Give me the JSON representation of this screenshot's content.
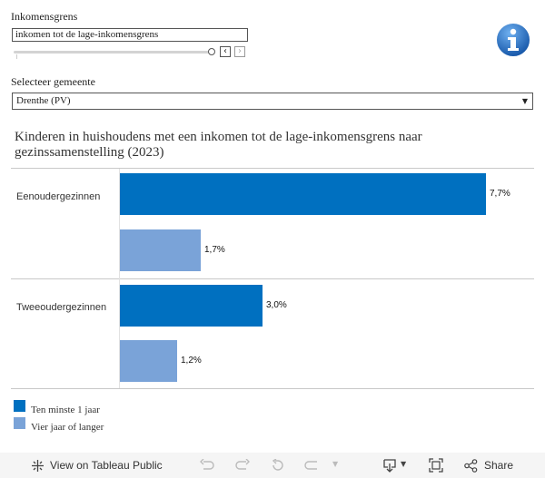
{
  "filters": {
    "income_label": "Inkomensgrens",
    "income_value": "inkomen tot de lage-inkomensgrens",
    "municipality_label": "Selecteer gemeente",
    "municipality_value": "Drenthe (PV)"
  },
  "chart_data": {
    "type": "bar",
    "orientation": "horizontal",
    "title": "Kinderen in huishoudens met een inkomen tot de lage-inkomensgrens naar gezinssamenstelling (2023)",
    "categories": [
      "Eenoudergezinnen",
      "Tweeoudergezinnen"
    ],
    "series": [
      {
        "name": "Ten minste 1 jaar",
        "values": [
          7.7,
          3.0
        ],
        "labels": [
          "7,7%",
          "3,0%"
        ]
      },
      {
        "name": "Vier jaar of langer",
        "values": [
          1.7,
          1.2
        ],
        "labels": [
          "1,7%",
          "1,2%"
        ]
      }
    ],
    "xlim": [
      0,
      7.7
    ],
    "unit": "%",
    "colors": [
      "#0070c0",
      "#7aa3d8"
    ],
    "legend_position": "bottom-left",
    "grid": false
  },
  "toolbar": {
    "view_label": "View on Tableau Public",
    "share_label": "Share"
  },
  "colors": {
    "info_icon": "#1f6fc5",
    "divider": "#c8c8c8",
    "toolbar_bg": "#f5f5f5"
  }
}
